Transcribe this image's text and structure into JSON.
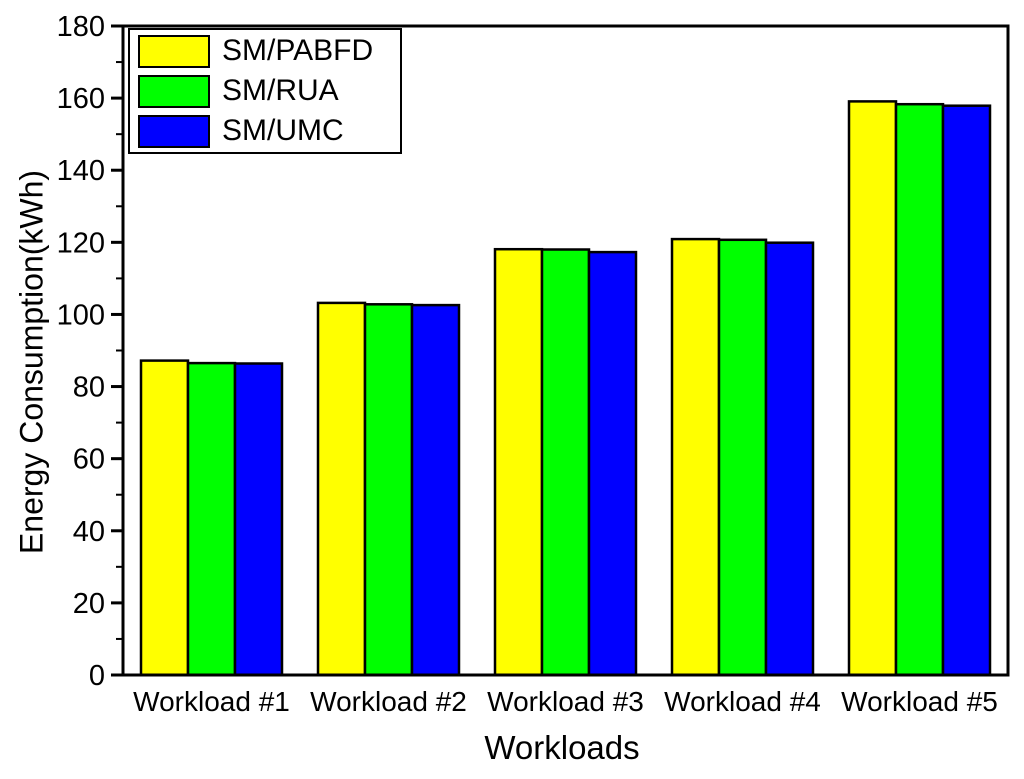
{
  "chart_data": {
    "type": "bar",
    "title": "",
    "xlabel": "Workloads",
    "ylabel": "Energy Consumption(kWh)",
    "categories": [
      "Workload #1",
      "Workload #2",
      "Workload #3",
      "Workload #4",
      "Workload #5"
    ],
    "series": [
      {
        "name": "SM/PABFD",
        "color": "#FFFF00",
        "values": [
          87.2,
          103.2,
          118.1,
          120.9,
          159.1
        ]
      },
      {
        "name": "SM/RUA",
        "color": "#00FF00",
        "values": [
          86.5,
          102.8,
          118.0,
          120.7,
          158.3
        ]
      },
      {
        "name": "SM/UMC",
        "color": "#0000FF",
        "values": [
          86.4,
          102.6,
          117.3,
          119.9,
          157.9
        ]
      }
    ],
    "ylim": [
      0,
      180
    ],
    "y_major_step": 20,
    "y_minor_step": 10,
    "y_tick_labels": [
      "0",
      "20",
      "40",
      "60",
      "80",
      "100",
      "120",
      "140",
      "160",
      "180"
    ],
    "bar_outline_color": "#000000",
    "axis_color": "#000000",
    "background_color": "#FFFFFF",
    "grid": false,
    "legend_position": "top-left"
  }
}
